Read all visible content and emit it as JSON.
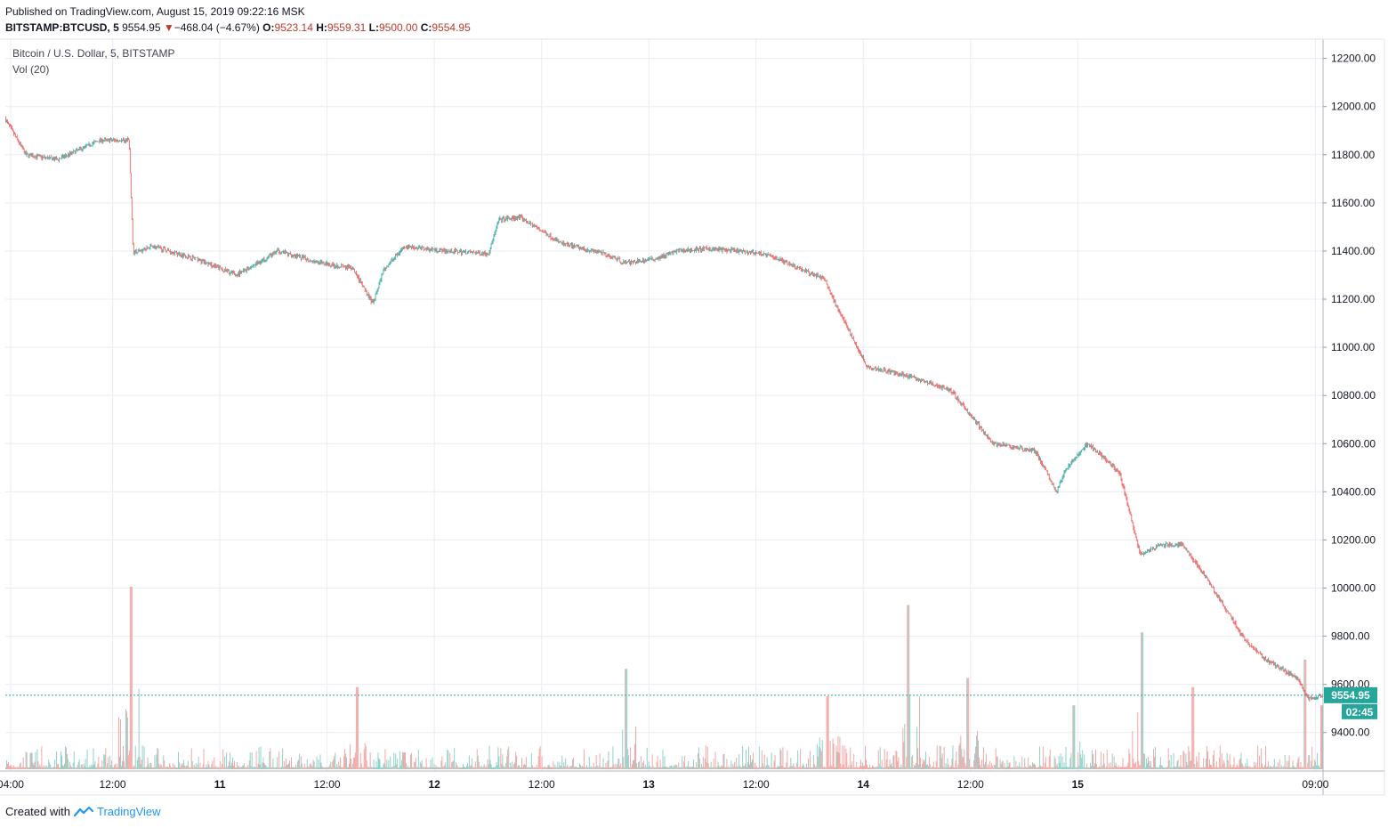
{
  "header": {
    "published": "Published on TradingView.com, August 15, 2019 09:22:16 MSK",
    "symbol": "BITSTAMP:BTCUSD, 5",
    "last": "9554.95",
    "change": "−468.04 (−4.67%)",
    "o_label": "O:",
    "o_value": "9523.14",
    "h_label": "H:",
    "h_value": "9559.31",
    "l_label": "L:",
    "l_value": "9500.00",
    "c_label": "C:",
    "c_value": "9554.95",
    "down_arrow": "▼"
  },
  "legend": {
    "series_title": "Bitcoin / U.S. Dollar, 5, BITSTAMP",
    "volume_title": "Vol (20)"
  },
  "footer": {
    "created_with": "Created with",
    "brand": "TradingView",
    "logo_icon": "tradingview-logo-icon"
  },
  "colors": {
    "up": "#26a69a",
    "down": "#ef5350",
    "up_vol": "#8fd0c8",
    "down_vol": "#f2a7a5",
    "grid": "#e9ecf2",
    "price_line": "#26a69a",
    "text": "#131722"
  },
  "chart_data": {
    "type": "candlestick",
    "timeframe": "5",
    "x_labels": [
      "04:00",
      "12:00",
      "11",
      "12:00",
      "12",
      "12:00",
      "13",
      "12:00",
      "14",
      "12:00",
      "15",
      "09:00"
    ],
    "y_ticks": [
      9400,
      9600,
      9800,
      10000,
      10200,
      10400,
      10600,
      10800,
      11000,
      11200,
      11400,
      11600,
      11800,
      12000,
      12200
    ],
    "y_tick_labels": [
      "9400.00",
      "9600.00",
      "9800.00",
      "10000.00",
      "10200.00",
      "10400.00",
      "10600.00",
      "10800.00",
      "11000.00",
      "11200.00",
      "11400.00",
      "11600.00",
      "11800.00",
      "12000.00",
      "12200.00"
    ],
    "ylim": [
      9240,
      12280
    ],
    "time_range_hours": [
      0,
      125.33
    ],
    "last_price": 9554.95,
    "last_price_label": "9554.95",
    "countdown": "02:45",
    "path_hours": [
      0,
      2,
      5,
      9,
      11.8,
      12.2,
      14,
      18,
      22,
      26,
      30,
      33,
      35,
      36,
      38,
      42,
      46,
      47,
      49,
      53,
      57,
      59,
      62,
      64,
      67,
      72,
      74,
      78,
      79,
      82,
      86,
      90,
      94,
      98,
      100,
      101,
      103,
      106,
      108,
      110,
      112,
      114,
      116,
      118,
      120,
      122,
      123,
      124,
      125.33
    ],
    "path_prices": [
      11950,
      11800,
      11780,
      11860,
      11860,
      11390,
      11420,
      11370,
      11300,
      11400,
      11350,
      11330,
      11180,
      11320,
      11420,
      11400,
      11390,
      11530,
      11540,
      11430,
      11390,
      11350,
      11370,
      11400,
      11410,
      11390,
      11360,
      11280,
      11180,
      10920,
      10880,
      10820,
      10600,
      10570,
      10400,
      10500,
      10600,
      10480,
      10140,
      10180,
      10180,
      10060,
      9920,
      9780,
      9700,
      9650,
      9620,
      9540,
      9554.95
    ],
    "volume_spike_hours": [
      11.9,
      33.4,
      59.0,
      78.2,
      85.8,
      91.5,
      101.6,
      108.1,
      112.9,
      123.6,
      125.2
    ],
    "volume_spike_values": [
      1.0,
      0.45,
      0.55,
      0.4,
      0.9,
      0.5,
      0.35,
      0.75,
      0.45,
      0.6,
      0.35
    ]
  }
}
